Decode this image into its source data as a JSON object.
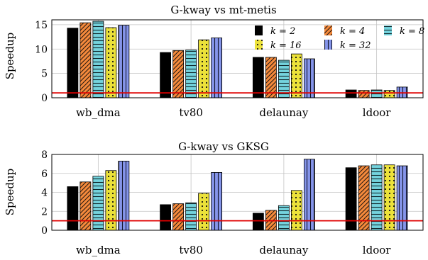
{
  "chart_data": [
    {
      "type": "bar",
      "title": "G-kway vs mt-metis",
      "xlabel": "",
      "ylabel": "Speedup",
      "categories": [
        "wb_dma",
        "tv80",
        "delaunay",
        "ldoor"
      ],
      "ylim": [
        0,
        16
      ],
      "yticks": [
        0,
        5,
        10,
        15
      ],
      "grid": true,
      "reference_line": 1,
      "legend": "top-right",
      "series": [
        {
          "name": "k = 2",
          "values": [
            14.3,
            9.3,
            8.3,
            1.6
          ],
          "color": "#000000",
          "pattern": "solid"
        },
        {
          "name": "k = 4",
          "values": [
            15.4,
            9.7,
            8.3,
            1.5
          ],
          "color": "#f58a3c",
          "pattern": "diagonal"
        },
        {
          "name": "k = 8",
          "values": [
            15.7,
            9.8,
            7.7,
            1.6
          ],
          "color": "#74d3dd",
          "pattern": "horizontal"
        },
        {
          "name": "k = 16",
          "values": [
            14.4,
            11.9,
            9.0,
            1.5
          ],
          "color": "#ece23a",
          "pattern": "dots"
        },
        {
          "name": "k = 32",
          "values": [
            14.9,
            12.3,
            8.0,
            2.2
          ],
          "color": "#8595ea",
          "pattern": "vertical"
        }
      ]
    },
    {
      "type": "bar",
      "title": "G-kway vs GKSG",
      "xlabel": "",
      "ylabel": "Speedup",
      "categories": [
        "wb_dma",
        "tv80",
        "delaunay",
        "ldoor"
      ],
      "ylim": [
        0,
        8
      ],
      "yticks": [
        0,
        2,
        4,
        6,
        8
      ],
      "grid": true,
      "reference_line": 1,
      "series": [
        {
          "name": "k = 2",
          "values": [
            4.6,
            2.7,
            1.8,
            6.6
          ],
          "color": "#000000",
          "pattern": "solid"
        },
        {
          "name": "k = 4",
          "values": [
            5.1,
            2.8,
            2.1,
            6.8
          ],
          "color": "#f58a3c",
          "pattern": "diagonal"
        },
        {
          "name": "k = 8",
          "values": [
            5.7,
            2.9,
            2.6,
            6.9
          ],
          "color": "#74d3dd",
          "pattern": "horizontal"
        },
        {
          "name": "k = 16",
          "values": [
            6.3,
            3.9,
            4.2,
            6.9
          ],
          "color": "#ece23a",
          "pattern": "dots"
        },
        {
          "name": "k = 32",
          "values": [
            7.3,
            6.1,
            7.5,
            6.8
          ],
          "color": "#8595ea",
          "pattern": "vertical"
        }
      ]
    }
  ],
  "colors": {
    "reference_line": "#e00000",
    "grid": "#c4c4c4",
    "axis": "#000000"
  }
}
